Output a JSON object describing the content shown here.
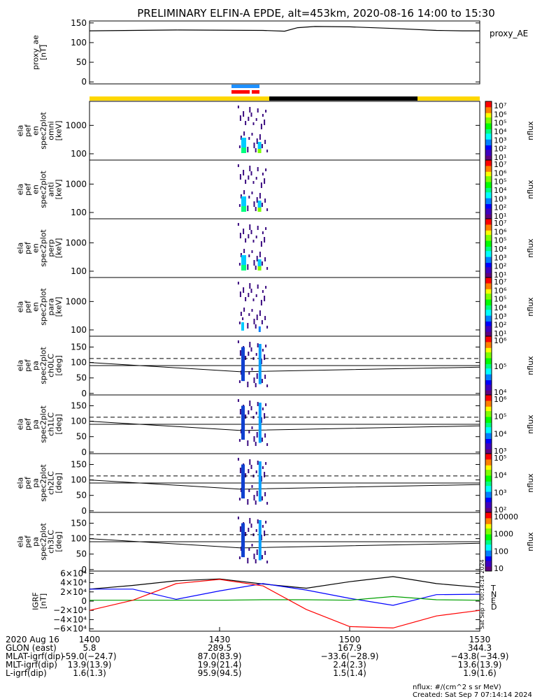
{
  "title": "PRELIMINARY ELFIN-A EPDE, alt=453km, 2020-08-16 14:00 to 15:30",
  "chart_data": [
    {
      "type": "line",
      "id": "proxy_ae",
      "ylabel": [
        "proxy_ae",
        "[nT]"
      ],
      "legend": "proxy_AE",
      "ylim": [
        -5,
        155
      ],
      "yticks": [
        "150",
        "100",
        "50",
        "0"
      ],
      "series": [
        {
          "name": "proxy_AE",
          "x": [
            0,
            20,
            40,
            45,
            48,
            52,
            60,
            70,
            80,
            86,
            90
          ],
          "y": [
            130,
            132,
            131,
            129,
            138,
            141,
            140,
            136,
            131,
            130,
            130
          ]
        }
      ]
    },
    {
      "type": "heatmap",
      "id": "spec_omni",
      "ylabel": [
        "ela",
        "pef",
        "en",
        "spec2plot",
        "omni",
        "[keV]"
      ],
      "yticks": [
        "1000",
        "100"
      ],
      "log_y": true,
      "ylim": [
        60,
        7000
      ],
      "colorbar": {
        "label": "nflux",
        "ticks": [
          "10⁷",
          "10⁶",
          "10⁵",
          "10⁴",
          "10³",
          "10²",
          "10¹"
        ]
      }
    },
    {
      "type": "heatmap",
      "id": "spec_anti",
      "ylabel": [
        "ela",
        "pef",
        "en",
        "spec2plot",
        "anti",
        "[keV]"
      ],
      "yticks": [
        "1000",
        "100"
      ],
      "log_y": true,
      "ylim": [
        60,
        7000
      ],
      "colorbar": {
        "label": "nflux",
        "ticks": [
          "10⁷",
          "10⁶",
          "10⁵",
          "10⁴",
          "10³",
          "10²",
          "10¹"
        ]
      }
    },
    {
      "type": "heatmap",
      "id": "spec_perp",
      "ylabel": [
        "ela",
        "pef",
        "en",
        "spec2plot",
        "perp",
        "[keV]"
      ],
      "yticks": [
        "1000",
        "100"
      ],
      "log_y": true,
      "ylim": [
        60,
        7000
      ],
      "colorbar": {
        "label": "nflux",
        "ticks": [
          "10⁷",
          "10⁶",
          "10⁵",
          "10⁴",
          "10³",
          "10²",
          "10¹"
        ]
      }
    },
    {
      "type": "heatmap",
      "id": "spec_para",
      "ylabel": [
        "ela",
        "pef",
        "en",
        "spec2plot",
        "para",
        "[keV]"
      ],
      "yticks": [
        "1000",
        "100"
      ],
      "log_y": true,
      "ylim": [
        60,
        7000
      ],
      "colorbar": {
        "label": "nflux",
        "ticks": [
          "10⁷",
          "10⁶",
          "10⁵",
          "10⁴",
          "10³",
          "10²",
          "10¹"
        ]
      }
    },
    {
      "type": "heatmap",
      "id": "pa_ch0",
      "ylabel": [
        "ela",
        "pef",
        "pa",
        "spec2plot",
        "ch0LC",
        "[deg]"
      ],
      "yticks": [
        "150",
        "100",
        "50",
        "0"
      ],
      "ylim": [
        -5,
        185
      ],
      "colorbar": {
        "label": "nflux",
        "ticks": [
          "10⁶",
          "10⁵",
          "10⁴"
        ]
      }
    },
    {
      "type": "heatmap",
      "id": "pa_ch1",
      "ylabel": [
        "ela",
        "pef",
        "pa",
        "spec2plot",
        "ch1LC",
        "[deg]"
      ],
      "yticks": [
        "150",
        "100",
        "50",
        "0"
      ],
      "ylim": [
        -5,
        185
      ],
      "colorbar": {
        "label": "nflux",
        "ticks": [
          "10⁶",
          "10⁵",
          "10⁴",
          "10³"
        ]
      }
    },
    {
      "type": "heatmap",
      "id": "pa_ch2",
      "ylabel": [
        "ela",
        "pef",
        "pa",
        "spec2plot",
        "ch2LC",
        "[deg]"
      ],
      "yticks": [
        "150",
        "100",
        "50",
        "0"
      ],
      "ylim": [
        -5,
        185
      ],
      "colorbar": {
        "label": "nflux",
        "ticks": [
          "10⁵",
          "10⁴",
          "10³",
          "10²"
        ]
      }
    },
    {
      "type": "heatmap",
      "id": "pa_ch3",
      "ylabel": [
        "ela",
        "pef",
        "pa",
        "spec2plot",
        "ch3LC",
        "[deg]"
      ],
      "yticks": [
        "150",
        "100",
        "50",
        "0"
      ],
      "ylim": [
        -5,
        185
      ],
      "colorbar": {
        "label": "nflux",
        "ticks": [
          "10000",
          "1000",
          "100",
          "10"
        ]
      }
    },
    {
      "type": "line",
      "id": "igrf",
      "ylabel": [
        "IGRF",
        "[nT]"
      ],
      "yticks": [
        "6×10⁴",
        "4×10⁴",
        "2×10⁴",
        "0",
        "−2×10⁴",
        "−4×10⁴",
        "−6×10⁴"
      ],
      "ylim": [
        -65000,
        65000
      ],
      "legend": [
        "T",
        "N",
        "E",
        "D"
      ],
      "series": [
        {
          "name": "T",
          "color": "#000000",
          "x": [
            0,
            10,
            20,
            30,
            40,
            50,
            60,
            70,
            80,
            90
          ],
          "y": [
            26000,
            34000,
            44000,
            48000,
            37000,
            28000,
            42000,
            53000,
            38000,
            30000
          ]
        },
        {
          "name": "N",
          "color": "#0000ff",
          "x": [
            0,
            10,
            20,
            30,
            40,
            50,
            60,
            70,
            80,
            90
          ],
          "y": [
            26000,
            26000,
            4000,
            22000,
            38000,
            24000,
            6000,
            -9000,
            14000,
            15000
          ]
        },
        {
          "name": "E",
          "color": "#00a000",
          "x": [
            0,
            10,
            20,
            30,
            40,
            50,
            60,
            70,
            80,
            90
          ],
          "y": [
            2000,
            2000,
            2000,
            2000,
            3000,
            3000,
            2000,
            10000,
            3000,
            2000
          ]
        },
        {
          "name": "D",
          "color": "#ff0000",
          "x": [
            0,
            10,
            20,
            30,
            40,
            50,
            60,
            70,
            80,
            90
          ],
          "y": [
            -20000,
            2000,
            38000,
            47000,
            33000,
            -18000,
            -55000,
            -58000,
            -32000,
            -20000
          ]
        }
      ]
    }
  ],
  "x_axis": {
    "rows": [
      {
        "label": "2020 Aug 16",
        "values": [
          "1400",
          "1430",
          "1500",
          "1530"
        ]
      },
      {
        "label": "GLON (east)",
        "values": [
          "5.8",
          "289.5",
          "167.9",
          "344.3"
        ]
      },
      {
        "label": "MLAT-igrf(dip)",
        "values": [
          "-59.0(−24.7)",
          "87.0(83.9)",
          "−33.6(−28.9)",
          "−43.8(−34.9)"
        ]
      },
      {
        "label": "MLT-igrf(dip)",
        "values": [
          "13.9(13.9)",
          "19.9(21.4)",
          "2.4(2.3)",
          "13.6(13.9)"
        ]
      },
      {
        "label": "L-igrf(dip)",
        "values": [
          "1.6(1.3)",
          "95.9(94.5)",
          "1.5(1.4)",
          "1.9(1.6)"
        ]
      }
    ]
  },
  "footer": {
    "units": "nflux: #/(cm^2 s sr MeV)",
    "created": "Created: Sat Sep  7 07:14:14 2024",
    "side_stamp": "Sat Sep  7 00:14:14 2024"
  }
}
